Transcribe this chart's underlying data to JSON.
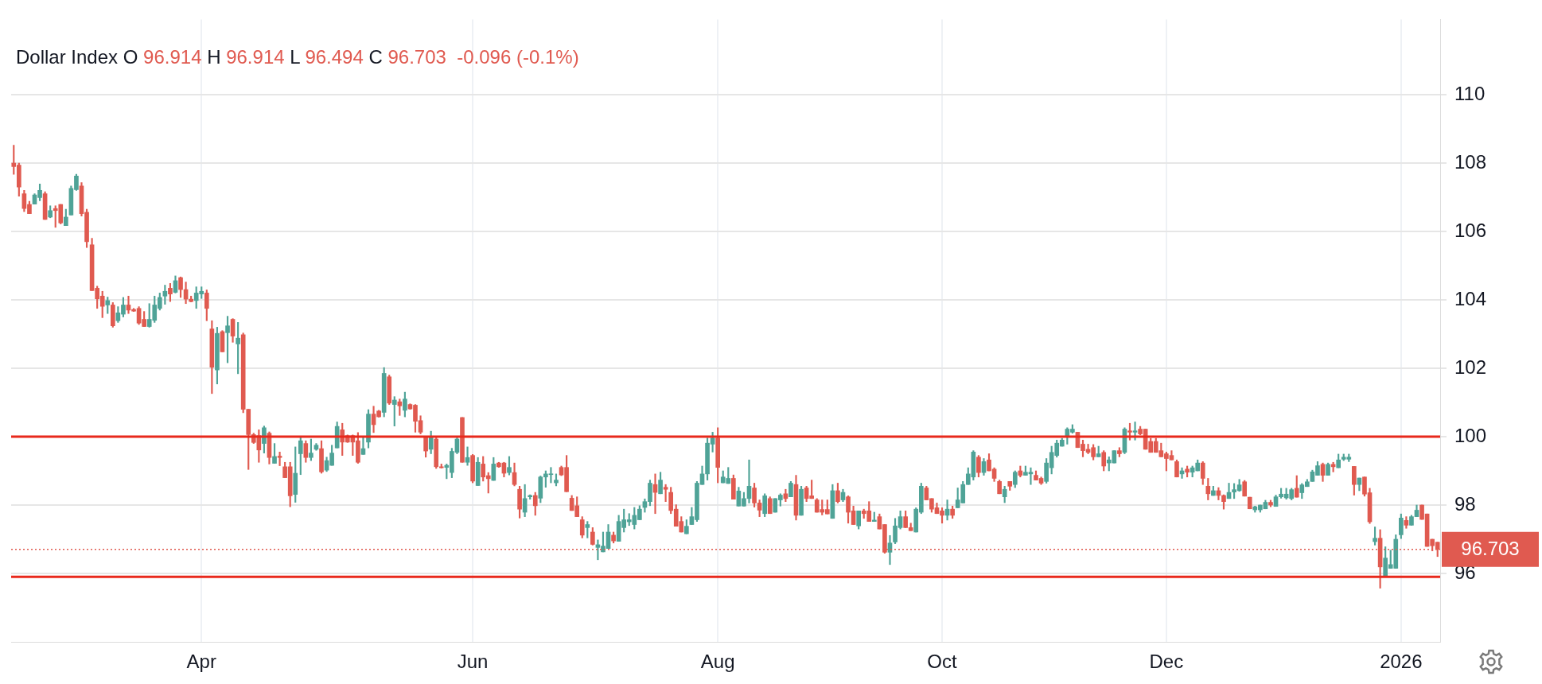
{
  "chart_data": {
    "type": "candlestick",
    "title": "Dollar Index",
    "subtitle": "O 96.914 H 96.914 L 96.494 C 96.703  -0.096 (-0.1%)",
    "categories": [
      null,
      null,
      null,
      null,
      null,
      null,
      null,
      null,
      null,
      null,
      null,
      null,
      null,
      null,
      null,
      null,
      null,
      null,
      null,
      null,
      null,
      null,
      null,
      null,
      null,
      null,
      null,
      null,
      null,
      null,
      null,
      null,
      null,
      null,
      null,
      null,
      "Apr",
      null,
      null,
      null,
      null,
      null,
      null,
      null,
      null,
      null,
      null,
      null,
      null,
      null,
      null,
      null,
      null,
      null,
      null,
      null,
      null,
      null,
      null,
      null,
      null,
      null,
      null,
      null,
      null,
      null,
      null,
      null,
      null,
      null,
      null,
      null,
      null,
      null,
      null,
      null,
      null,
      null,
      null,
      null,
      null,
      null,
      null,
      null,
      null,
      null,
      null,
      null,
      "Jun",
      null,
      null,
      null,
      null,
      null,
      null,
      null,
      null,
      null,
      null,
      null,
      null,
      null,
      null,
      null,
      null,
      null,
      null,
      null,
      null,
      null,
      null,
      null,
      null,
      null,
      null,
      null,
      null,
      null,
      null,
      null,
      null,
      null,
      null,
      null,
      null,
      null,
      null,
      null,
      null,
      null,
      null,
      null,
      null,
      null,
      null,
      "Aug",
      null,
      null,
      null,
      null,
      null,
      null,
      null,
      null,
      null,
      null,
      null,
      null,
      null,
      null,
      null,
      null,
      null,
      null,
      null,
      null,
      null,
      null,
      null,
      null,
      null,
      null,
      null,
      null,
      null,
      null,
      null,
      null,
      null,
      null,
      null,
      null,
      null,
      null,
      null,
      null,
      null,
      null,
      "Oct",
      null,
      null,
      null,
      null,
      null,
      null,
      null,
      null,
      null,
      null,
      null,
      null,
      null,
      null,
      null,
      null,
      null,
      null,
      null,
      null,
      null,
      null,
      null,
      null,
      null,
      null,
      null,
      null,
      null,
      null,
      null,
      null,
      null,
      null,
      null,
      null,
      null,
      null,
      null,
      null,
      null,
      null,
      "Dec",
      null,
      null,
      null,
      null,
      null,
      null,
      null,
      null,
      null,
      null,
      null,
      null,
      null,
      null,
      null,
      null,
      null,
      null,
      null,
      null,
      null,
      null,
      null,
      null,
      null,
      null,
      null,
      null,
      null,
      null,
      null,
      null,
      null,
      null,
      null,
      null,
      null,
      null,
      null,
      null,
      null,
      null,
      null,
      null,
      "2026",
      null,
      null,
      null,
      null,
      null,
      null,
      null
    ],
    "ohlc": [
      [
        108.0,
        108.52,
        107.67,
        107.9
      ],
      [
        107.94,
        108.0,
        107.03,
        107.3
      ],
      [
        107.1,
        107.2,
        106.58,
        106.67
      ],
      [
        106.79,
        106.88,
        106.52,
        106.52
      ],
      [
        106.8,
        107.1,
        106.8,
        107.07
      ],
      [
        106.99,
        107.39,
        106.9,
        107.2
      ],
      [
        107.1,
        107.16,
        106.35,
        106.35
      ],
      [
        106.42,
        106.75,
        106.4,
        106.61
      ],
      [
        106.67,
        106.75,
        106.12,
        106.61
      ],
      [
        106.79,
        106.79,
        106.22,
        106.25
      ],
      [
        106.17,
        106.65,
        106.17,
        106.42
      ],
      [
        106.48,
        107.33,
        106.48,
        107.26
      ],
      [
        107.22,
        107.67,
        107.2,
        107.62
      ],
      [
        107.33,
        107.43,
        106.45,
        106.52
      ],
      [
        106.56,
        106.65,
        105.53,
        105.7
      ],
      [
        105.61,
        105.8,
        104.27,
        104.27
      ],
      [
        104.34,
        104.4,
        103.75,
        104.03
      ],
      [
        104.11,
        104.25,
        103.48,
        103.81
      ],
      [
        103.85,
        104.08,
        103.6,
        103.98
      ],
      [
        103.85,
        103.92,
        103.2,
        103.24
      ],
      [
        103.39,
        103.8,
        103.34,
        103.62
      ],
      [
        103.58,
        104.07,
        103.5,
        103.85
      ],
      [
        103.85,
        104.11,
        103.6,
        103.7
      ],
      [
        103.72,
        103.75,
        103.66,
        103.67
      ],
      [
        103.75,
        103.8,
        103.28,
        103.32
      ],
      [
        103.43,
        103.66,
        103.22,
        103.22
      ],
      [
        103.22,
        103.89,
        103.2,
        103.43
      ],
      [
        103.4,
        104.11,
        103.34,
        103.85
      ],
      [
        103.75,
        104.2,
        103.7,
        104.07
      ],
      [
        104.11,
        104.43,
        103.87,
        104.25
      ],
      [
        104.34,
        104.48,
        103.95,
        104.17
      ],
      [
        104.22,
        104.7,
        104.2,
        104.56
      ],
      [
        104.65,
        104.67,
        104.07,
        104.3
      ],
      [
        104.3,
        104.52,
        103.89,
        104.02
      ],
      [
        104.02,
        104.11,
        103.94,
        103.95
      ],
      [
        103.98,
        104.38,
        103.75,
        104.2
      ],
      [
        104.17,
        104.38,
        104.04,
        104.25
      ],
      [
        104.2,
        104.29,
        103.39,
        103.75
      ],
      [
        103.15,
        103.39,
        101.26,
        102.03
      ],
      [
        101.95,
        103.2,
        101.54,
        103.02
      ],
      [
        103.07,
        103.1,
        102.48,
        102.48
      ],
      [
        103.04,
        103.52,
        102.16,
        103.24
      ],
      [
        103.43,
        103.45,
        102.76,
        102.94
      ],
      [
        102.71,
        103.34,
        101.84,
        102.88
      ],
      [
        102.98,
        103.03,
        100.7,
        100.8
      ],
      [
        100.8,
        100.8,
        99.04,
        100.06
      ],
      [
        100.06,
        100.1,
        99.8,
        99.83
      ],
      [
        100.03,
        100.2,
        99.25,
        99.61
      ],
      [
        99.8,
        100.31,
        99.52,
        100.26
      ],
      [
        100.1,
        100.14,
        99.2,
        99.39
      ],
      [
        99.22,
        99.8,
        99.22,
        99.42
      ],
      [
        99.43,
        99.55,
        99.15,
        99.39
      ],
      [
        99.12,
        99.25,
        98.8,
        98.8
      ],
      [
        99.12,
        99.25,
        97.95,
        98.27
      ],
      [
        98.31,
        99.7,
        98.08,
        98.93
      ],
      [
        99.5,
        99.99,
        98.89,
        99.88
      ],
      [
        99.8,
        99.88,
        99.25,
        99.39
      ],
      [
        99.39,
        99.93,
        99.3,
        99.52
      ],
      [
        99.63,
        99.8,
        99.6,
        99.75
      ],
      [
        99.65,
        99.88,
        98.93,
        98.97
      ],
      [
        99.02,
        99.4,
        98.98,
        99.3
      ],
      [
        99.16,
        99.75,
        99.16,
        99.52
      ],
      [
        99.67,
        100.43,
        99.67,
        100.3
      ],
      [
        100.2,
        100.39,
        99.45,
        99.84
      ],
      [
        100.03,
        100.05,
        99.83,
        99.84
      ],
      [
        100.03,
        100.05,
        99.45,
        99.84
      ],
      [
        99.88,
        100.12,
        99.22,
        99.25
      ],
      [
        99.48,
        99.99,
        99.48,
        99.65
      ],
      [
        99.84,
        100.79,
        99.67,
        100.66
      ],
      [
        100.66,
        100.89,
        100.12,
        100.35
      ],
      [
        100.75,
        100.77,
        100.57,
        100.58
      ],
      [
        100.71,
        102.02,
        100.58,
        101.85
      ],
      [
        101.75,
        101.8,
        100.94,
        100.98
      ],
      [
        100.94,
        101.17,
        100.31,
        101.07
      ],
      [
        101.02,
        101.1,
        100.62,
        100.9
      ],
      [
        100.77,
        101.3,
        100.58,
        101.1
      ],
      [
        100.94,
        100.96,
        100.8,
        100.81
      ],
      [
        100.92,
        100.94,
        100.13,
        100.45
      ],
      [
        100.47,
        100.61,
        100.08,
        100.13
      ],
      [
        99.99,
        100.0,
        99.4,
        99.58
      ],
      [
        99.63,
        100.16,
        99.5,
        99.99
      ],
      [
        99.93,
        100.0,
        99.07,
        99.12
      ],
      [
        99.12,
        99.2,
        99.08,
        99.09
      ],
      [
        99.1,
        99.2,
        98.77,
        99.16
      ],
      [
        98.95,
        99.66,
        98.8,
        99.57
      ],
      [
        99.54,
        99.99,
        99.5,
        99.93
      ],
      [
        100.56,
        100.56,
        99.25,
        99.25
      ],
      [
        99.25,
        99.7,
        99.16,
        99.39
      ],
      [
        99.45,
        99.48,
        98.65,
        98.7
      ],
      [
        98.57,
        99.39,
        98.57,
        99.25
      ],
      [
        99.2,
        99.42,
        98.7,
        98.82
      ],
      [
        98.86,
        98.95,
        98.35,
        98.77
      ],
      [
        98.72,
        99.39,
        98.72,
        99.2
      ],
      [
        99.23,
        99.25,
        99.1,
        99.12
      ],
      [
        99.23,
        99.25,
        98.82,
        98.93
      ],
      [
        98.95,
        99.42,
        98.88,
        99.1
      ],
      [
        98.95,
        99.23,
        98.56,
        98.6
      ],
      [
        98.46,
        98.55,
        97.62,
        97.88
      ],
      [
        97.79,
        98.6,
        97.66,
        98.19
      ],
      [
        98.24,
        98.3,
        98.17,
        98.28
      ],
      [
        98.28,
        98.37,
        97.7,
        97.98
      ],
      [
        98.2,
        98.85,
        98.07,
        98.82
      ],
      [
        98.82,
        99.0,
        98.52,
        98.91
      ],
      [
        98.89,
        99.1,
        98.65,
        98.91
      ],
      [
        98.65,
        98.91,
        98.56,
        98.73
      ],
      [
        99.1,
        99.14,
        98.86,
        98.88
      ],
      [
        99.1,
        99.45,
        98.39,
        98.39
      ],
      [
        98.2,
        98.28,
        97.84,
        97.84
      ],
      [
        97.98,
        98.24,
        97.66,
        97.66
      ],
      [
        97.57,
        97.66,
        97.04,
        97.12
      ],
      [
        97.34,
        97.52,
        97.04,
        97.43
      ],
      [
        97.21,
        97.34,
        96.83,
        96.85
      ],
      [
        96.76,
        96.98,
        96.4,
        96.84
      ],
      [
        96.63,
        97.21,
        96.63,
        96.8
      ],
      [
        96.73,
        97.43,
        96.73,
        97.21
      ],
      [
        97.12,
        97.21,
        96.89,
        96.95
      ],
      [
        96.94,
        97.7,
        96.94,
        97.52
      ],
      [
        97.34,
        97.88,
        97.21,
        97.57
      ],
      [
        97.51,
        97.75,
        97.4,
        97.57
      ],
      [
        97.43,
        97.93,
        97.3,
        97.7
      ],
      [
        97.57,
        97.98,
        97.57,
        97.88
      ],
      [
        97.93,
        98.18,
        97.79,
        98.1
      ],
      [
        98.1,
        98.73,
        97.98,
        98.64
      ],
      [
        98.6,
        98.91,
        97.75,
        98.37
      ],
      [
        98.33,
        98.96,
        98.33,
        98.73
      ],
      [
        98.52,
        98.6,
        98.1,
        98.46
      ],
      [
        98.37,
        98.52,
        97.75,
        97.84
      ],
      [
        97.88,
        98.01,
        97.38,
        97.38
      ],
      [
        97.52,
        97.66,
        97.21,
        97.21
      ],
      [
        97.16,
        97.57,
        97.16,
        97.38
      ],
      [
        97.43,
        97.93,
        97.43,
        97.66
      ],
      [
        97.57,
        98.69,
        97.52,
        98.64
      ],
      [
        98.6,
        99.14,
        98.6,
        98.91
      ],
      [
        98.91,
        99.96,
        98.73,
        99.81
      ],
      [
        99.78,
        100.13,
        99.55,
        99.96
      ],
      [
        99.96,
        100.26,
        98.65,
        99.1
      ],
      [
        98.65,
        99.0,
        98.65,
        98.82
      ],
      [
        98.63,
        99.1,
        98.63,
        98.78
      ],
      [
        98.78,
        98.88,
        98.17,
        98.17
      ],
      [
        97.97,
        98.52,
        97.97,
        98.41
      ],
      [
        97.97,
        98.37,
        97.97,
        98.19
      ],
      [
        98.19,
        99.32,
        98.06,
        98.55
      ],
      [
        98.5,
        98.64,
        97.94,
        98.06
      ],
      [
        98.06,
        98.15,
        97.66,
        97.85
      ],
      [
        97.75,
        98.33,
        97.66,
        98.27
      ],
      [
        98.19,
        98.24,
        97.75,
        97.75
      ],
      [
        97.79,
        98.19,
        97.79,
        98.19
      ],
      [
        98.15,
        98.33,
        97.97,
        98.29
      ],
      [
        98.33,
        98.46,
        98.1,
        98.19
      ],
      [
        98.24,
        98.69,
        98.24,
        98.64
      ],
      [
        98.6,
        98.87,
        97.56,
        97.7
      ],
      [
        97.7,
        98.55,
        97.7,
        98.46
      ],
      [
        98.5,
        98.55,
        98.1,
        98.19
      ],
      [
        98.27,
        98.73,
        98.19,
        98.19
      ],
      [
        98.15,
        98.19,
        97.79,
        97.79
      ],
      [
        97.87,
        98.15,
        97.71,
        97.79
      ],
      [
        97.87,
        98.15,
        97.74,
        97.74
      ],
      [
        97.61,
        98.6,
        97.61,
        98.42
      ],
      [
        98.42,
        98.64,
        98.06,
        98.1
      ],
      [
        98.15,
        98.46,
        98.1,
        98.37
      ],
      [
        98.24,
        98.27,
        97.47,
        97.79
      ],
      [
        97.83,
        97.97,
        97.43,
        97.43
      ],
      [
        97.39,
        97.83,
        97.3,
        97.83
      ],
      [
        97.83,
        97.88,
        97.61,
        97.75
      ],
      [
        97.83,
        98.1,
        97.52,
        97.52
      ],
      [
        97.52,
        97.79,
        97.52,
        97.56
      ],
      [
        97.66,
        97.74,
        97.3,
        97.3
      ],
      [
        97.43,
        97.43,
        96.59,
        96.62
      ],
      [
        96.62,
        97.11,
        96.26,
        96.89
      ],
      [
        96.92,
        97.61,
        96.87,
        97.39
      ],
      [
        97.34,
        97.83,
        97.3,
        97.66
      ],
      [
        97.66,
        97.83,
        97.34,
        97.34
      ],
      [
        97.34,
        97.47,
        97.25,
        97.25
      ],
      [
        97.21,
        97.92,
        97.21,
        97.88
      ],
      [
        97.79,
        98.64,
        97.75,
        98.55
      ],
      [
        98.5,
        98.55,
        98.15,
        98.15
      ],
      [
        98.19,
        98.19,
        97.79,
        97.88
      ],
      [
        97.92,
        98.06,
        97.75,
        97.75
      ],
      [
        97.83,
        97.92,
        97.47,
        97.7
      ],
      [
        97.7,
        98.15,
        97.56,
        97.88
      ],
      [
        97.88,
        97.97,
        97.61,
        97.7
      ],
      [
        97.92,
        98.5,
        97.92,
        98.15
      ],
      [
        98.06,
        98.69,
        98.06,
        98.6
      ],
      [
        98.6,
        99.09,
        98.6,
        98.91
      ],
      [
        98.82,
        99.59,
        98.73,
        99.55
      ],
      [
        99.4,
        99.45,
        98.82,
        98.95
      ],
      [
        98.95,
        99.36,
        98.87,
        99.27
      ],
      [
        99.32,
        99.5,
        99.0,
        99.0
      ],
      [
        99.05,
        99.09,
        98.69,
        98.78
      ],
      [
        98.69,
        98.73,
        98.33,
        98.33
      ],
      [
        98.24,
        98.55,
        98.07,
        98.46
      ],
      [
        98.69,
        98.69,
        98.43,
        98.55
      ],
      [
        98.6,
        99.0,
        98.51,
        98.96
      ],
      [
        99.0,
        99.14,
        98.82,
        98.87
      ],
      [
        98.87,
        99.14,
        98.87,
        98.96
      ],
      [
        98.91,
        99.09,
        98.6,
        98.96
      ],
      [
        98.87,
        99.0,
        98.73,
        98.73
      ],
      [
        98.78,
        98.82,
        98.6,
        98.64
      ],
      [
        98.69,
        99.36,
        98.64,
        99.23
      ],
      [
        99.09,
        99.72,
        98.91,
        99.54
      ],
      [
        99.45,
        99.9,
        99.4,
        99.81
      ],
      [
        99.72,
        99.95,
        99.72,
        99.9
      ],
      [
        100.0,
        100.26,
        99.78,
        100.22
      ],
      [
        100.13,
        100.35,
        100.1,
        100.22
      ],
      [
        100.13,
        100.13,
        99.68,
        99.68
      ],
      [
        99.78,
        99.9,
        99.41,
        99.59
      ],
      [
        99.63,
        99.78,
        99.5,
        99.54
      ],
      [
        99.68,
        99.77,
        99.32,
        99.41
      ],
      [
        99.41,
        99.72,
        99.41,
        99.5
      ],
      [
        99.54,
        99.59,
        99.0,
        99.14
      ],
      [
        99.23,
        99.41,
        99.0,
        99.32
      ],
      [
        99.23,
        99.59,
        99.23,
        99.59
      ],
      [
        99.59,
        99.68,
        99.41,
        99.5
      ],
      [
        99.54,
        100.26,
        99.5,
        100.22
      ],
      [
        100.17,
        100.39,
        99.9,
        100.13
      ],
      [
        100.13,
        100.43,
        99.9,
        100.17
      ],
      [
        100.22,
        100.3,
        100.05,
        100.08
      ],
      [
        100.22,
        100.22,
        99.63,
        99.63
      ],
      [
        99.86,
        99.95,
        99.54,
        99.54
      ],
      [
        99.86,
        99.95,
        99.54,
        99.54
      ],
      [
        99.59,
        99.81,
        99.41,
        99.41
      ],
      [
        99.5,
        99.55,
        99.0,
        99.36
      ],
      [
        99.45,
        99.59,
        99.32,
        99.32
      ],
      [
        99.27,
        99.32,
        98.82,
        98.82
      ],
      [
        98.91,
        99.09,
        98.78,
        99.0
      ],
      [
        99.05,
        99.14,
        98.82,
        98.96
      ],
      [
        98.96,
        99.14,
        98.82,
        99.09
      ],
      [
        99.0,
        99.32,
        99.0,
        99.23
      ],
      [
        99.23,
        99.27,
        98.6,
        98.78
      ],
      [
        98.55,
        98.78,
        98.15,
        98.33
      ],
      [
        98.28,
        98.55,
        98.28,
        98.42
      ],
      [
        98.42,
        98.51,
        98.15,
        98.28
      ],
      [
        98.28,
        98.3,
        97.88,
        98.1
      ],
      [
        98.19,
        98.64,
        98.19,
        98.37
      ],
      [
        98.38,
        98.63,
        98.19,
        98.45
      ],
      [
        98.42,
        98.75,
        98.4,
        98.59
      ],
      [
        98.68,
        98.72,
        98.26,
        98.26
      ],
      [
        98.23,
        98.23,
        97.89,
        97.89
      ],
      [
        97.86,
        97.97,
        97.79,
        97.95
      ],
      [
        97.86,
        98.0,
        97.79,
        98.0
      ],
      [
        97.89,
        98.14,
        97.89,
        98.08
      ],
      [
        98.08,
        98.14,
        97.95,
        98.0
      ],
      [
        97.96,
        98.29,
        97.96,
        98.24
      ],
      [
        98.24,
        98.49,
        98.2,
        98.32
      ],
      [
        98.21,
        98.49,
        98.17,
        98.32
      ],
      [
        98.19,
        98.49,
        98.15,
        98.45
      ],
      [
        98.49,
        98.86,
        98.23,
        98.23
      ],
      [
        98.36,
        98.63,
        98.19,
        98.59
      ],
      [
        98.54,
        98.75,
        98.54,
        98.68
      ],
      [
        98.69,
        99.02,
        98.69,
        98.97
      ],
      [
        98.87,
        99.27,
        98.87,
        99.15
      ],
      [
        99.19,
        99.23,
        98.69,
        98.87
      ],
      [
        98.87,
        99.23,
        98.87,
        99.19
      ],
      [
        99.19,
        99.25,
        98.97,
        99.12
      ],
      [
        99.09,
        99.49,
        99.09,
        99.32
      ],
      [
        99.34,
        99.49,
        99.3,
        99.4
      ],
      [
        99.34,
        99.49,
        99.27,
        99.4
      ],
      [
        99.13,
        99.13,
        98.29,
        98.6
      ],
      [
        98.6,
        98.79,
        98.42,
        98.79
      ],
      [
        98.82,
        98.82,
        98.26,
        98.32
      ],
      [
        98.36,
        98.49,
        97.46,
        97.51
      ],
      [
        96.93,
        97.36,
        96.83,
        97.03
      ],
      [
        97.03,
        97.28,
        95.57,
        96.19
      ],
      [
        95.92,
        96.78,
        95.92,
        96.45
      ],
      [
        96.15,
        96.68,
        96.15,
        96.26
      ],
      [
        96.15,
        97.13,
        96.15,
        97.0
      ],
      [
        97.13,
        97.74,
        97.02,
        97.62
      ],
      [
        97.55,
        97.66,
        97.32,
        97.41
      ],
      [
        97.41,
        97.7,
        97.41,
        97.66
      ],
      [
        97.66,
        98.0,
        97.66,
        97.85
      ],
      [
        98.0,
        98.0,
        97.58,
        97.58
      ],
      [
        97.74,
        97.74,
        96.79,
        96.79
      ],
      [
        97.0,
        97.0,
        96.66,
        96.81
      ],
      [
        96.914,
        96.914,
        96.494,
        96.703
      ]
    ],
    "ylim": [
      94,
      112.2
    ],
    "yticks": [
      96,
      98,
      100,
      102,
      104,
      106,
      108,
      110
    ],
    "grid": true,
    "ref_lines": [
      {
        "axis": "y",
        "value": 100,
        "color": "#e8291c",
        "line_style": "solid"
      },
      {
        "axis": "y",
        "value": 95.9,
        "color": "#e8291c",
        "line_style": "solid"
      },
      {
        "axis": "y",
        "value": 96.703,
        "label": "96.703",
        "color": "#e05a50",
        "line_style": "dotted"
      }
    ]
  }
}
